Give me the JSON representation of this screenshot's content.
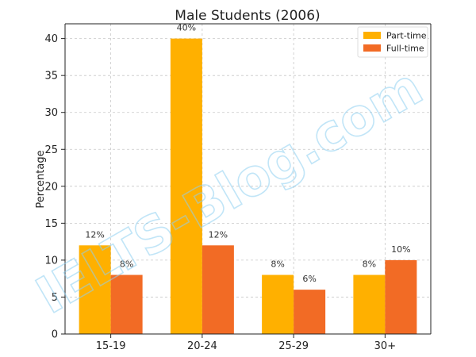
{
  "chart_data": {
    "type": "bar",
    "title": "Male Students (2006)",
    "xlabel": "",
    "ylabel": "Percentage",
    "categories": [
      "15-19",
      "20-24",
      "25-29",
      "30+"
    ],
    "series": [
      {
        "name": "Part-time",
        "values": [
          12,
          40,
          8,
          8
        ],
        "labels": [
          "12%",
          "40%",
          "8%",
          "8%"
        ],
        "color": "#FFB000"
      },
      {
        "name": "Full-time",
        "values": [
          8,
          12,
          6,
          10
        ],
        "labels": [
          "8%",
          "12%",
          "6%",
          "10%"
        ],
        "color": "#F26B25"
      }
    ],
    "ylim": [
      0,
      42
    ],
    "yticks": [
      0,
      5,
      10,
      15,
      20,
      25,
      30,
      35,
      40
    ],
    "grid": true,
    "legend_position": "top-right"
  },
  "watermark": {
    "text": "IELTS-Blog.com",
    "color": "#8FD0F2"
  }
}
